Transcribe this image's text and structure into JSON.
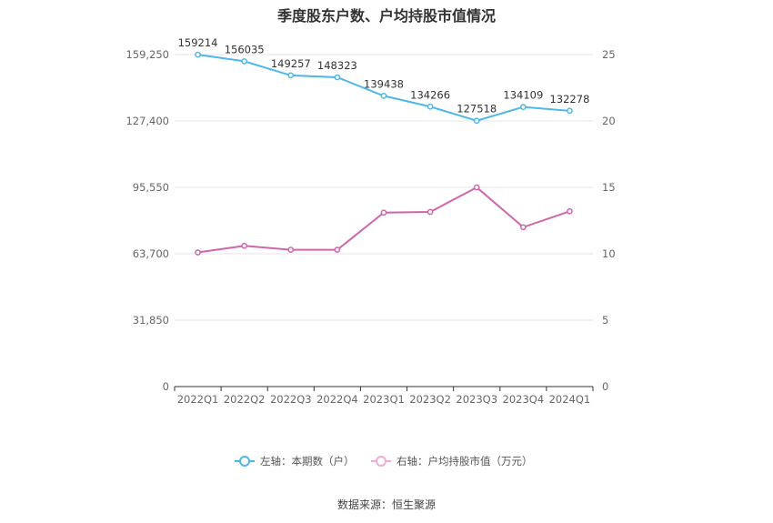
{
  "chart_data": {
    "type": "line",
    "title": "季度股东户数、户均持股市值情况",
    "categories": [
      "2022Q1",
      "2022Q2",
      "2022Q3",
      "2022Q4",
      "2023Q1",
      "2023Q2",
      "2023Q3",
      "2023Q4",
      "2024Q1"
    ],
    "left_axis": {
      "ticks": [
        "0",
        "31,850",
        "63,700",
        "95,550",
        "127,400",
        "159,250"
      ],
      "ylim": [
        0,
        159250
      ]
    },
    "right_axis": {
      "ticks": [
        "0",
        "5",
        "10",
        "15",
        "20",
        "25"
      ],
      "ylim": [
        0,
        25
      ]
    },
    "series": [
      {
        "name": "左轴：本期数（户）",
        "axis": "left",
        "color": "#4db8e8",
        "values": [
          159214,
          156035,
          149257,
          148323,
          139438,
          134266,
          127518,
          134109,
          132278
        ],
        "labels": [
          "159214",
          "156035",
          "149257",
          "148323",
          "139438",
          "134266",
          "127518",
          "134109",
          "132278"
        ]
      },
      {
        "name": "右轴：户均持股市值（万元）",
        "axis": "right",
        "color": "#d066aa",
        "values": [
          10.1,
          10.6,
          10.3,
          10.3,
          13.1,
          13.15,
          15.0,
          12.0,
          13.2
        ]
      }
    ],
    "grid": true,
    "legend_position": "bottom"
  },
  "source": "数据来源：恒生聚源"
}
